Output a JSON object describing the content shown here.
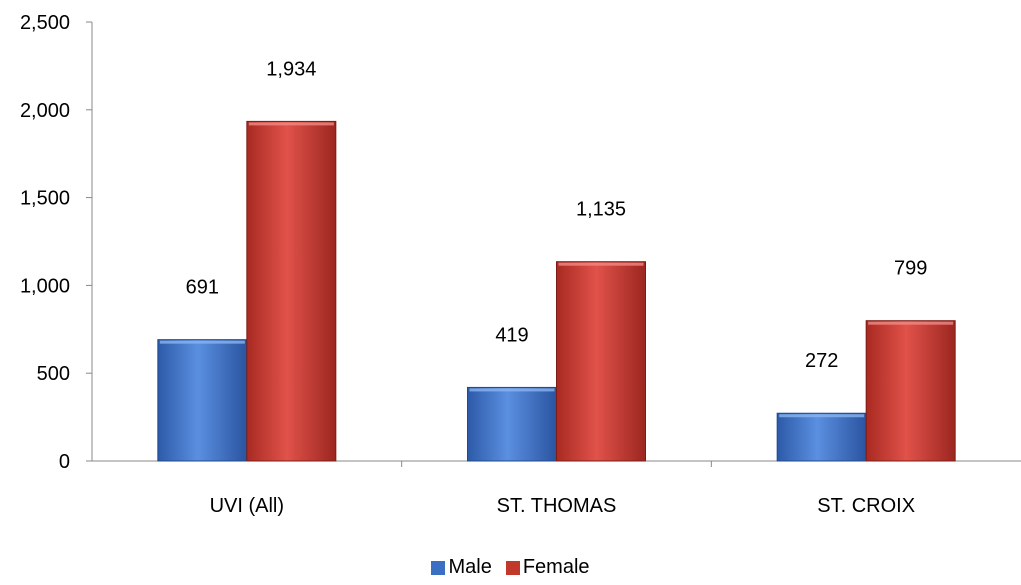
{
  "chart_data": {
    "type": "bar",
    "categories": [
      "UVI (All)",
      "ST. THOMAS",
      "ST. CROIX"
    ],
    "series": [
      {
        "name": "Male",
        "values": [
          691,
          419,
          272
        ],
        "color": "#3a6fc4",
        "labels": [
          "691",
          "419",
          "272"
        ]
      },
      {
        "name": "Female",
        "values": [
          1934,
          1135,
          799
        ],
        "color": "#c0392b",
        "labels": [
          "1,934",
          "1,135",
          "799"
        ]
      }
    ],
    "ylim": [
      0,
      2500
    ],
    "yticks": [
      0,
      500,
      1000,
      1500,
      2000,
      2500
    ],
    "ytick_labels": [
      "0",
      "500",
      "1,000",
      "1,500",
      "2,000",
      "2,500"
    ],
    "grid": false,
    "legend": "bottom"
  }
}
